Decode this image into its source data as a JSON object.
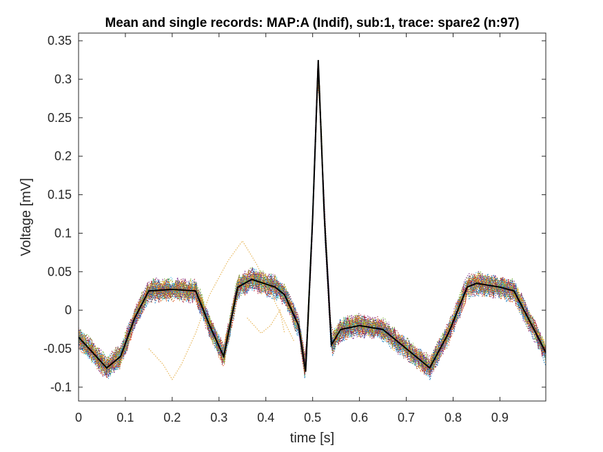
{
  "chart_data": {
    "type": "line",
    "title": "Mean and single records: MAP:A (Indif), sub:1, trace: spare2 (n:97)",
    "xlabel": "time [s]",
    "ylabel": "Voltage [mV]",
    "xlim": [
      0,
      0.998
    ],
    "ylim": [
      -0.118,
      0.36
    ],
    "x_ticks": [
      0,
      0.1,
      0.2,
      0.3,
      0.4,
      0.5,
      0.6,
      0.7,
      0.8,
      0.9
    ],
    "x_tick_labels": [
      "0",
      "0.1",
      "0.2",
      "0.3",
      "0.4",
      "0.5",
      "0.6",
      "0.7",
      "0.8",
      "0.9"
    ],
    "y_ticks": [
      -0.1,
      -0.05,
      0,
      0.05,
      0.1,
      0.15,
      0.2,
      0.25,
      0.3,
      0.35
    ],
    "y_tick_labels": [
      "-0.1",
      "-0.05",
      "0",
      "0.05",
      "0.1",
      "0.15",
      "0.2",
      "0.25",
      "0.3",
      "0.35"
    ],
    "grid": false,
    "single_record_count": 97,
    "single_record_style": "dotted multicolor",
    "mean_color": "#000000",
    "mean_series": {
      "x": [
        0,
        0.03,
        0.06,
        0.09,
        0.12,
        0.15,
        0.2,
        0.25,
        0.28,
        0.31,
        0.34,
        0.37,
        0.42,
        0.44,
        0.47,
        0.485,
        0.5,
        0.512,
        0.525,
        0.54,
        0.56,
        0.6,
        0.65,
        0.7,
        0.75,
        0.79,
        0.83,
        0.85,
        0.9,
        0.93,
        0.96,
        0.998
      ],
      "y": [
        -0.035,
        -0.055,
        -0.075,
        -0.06,
        -0.01,
        0.025,
        0.027,
        0.025,
        -0.02,
        -0.06,
        0.03,
        0.04,
        0.03,
        0.02,
        -0.02,
        -0.08,
        0.12,
        0.325,
        0.12,
        -0.045,
        -0.025,
        -0.02,
        -0.025,
        -0.05,
        -0.075,
        -0.03,
        0.03,
        0.035,
        0.03,
        0.025,
        -0.01,
        -0.055
      ]
    },
    "outlier_color": "#e6b455",
    "outlier_series": {
      "x": [
        0.15,
        0.18,
        0.2,
        0.22,
        0.25,
        0.28,
        0.32,
        0.35,
        0.38,
        0.42,
        0.46
      ],
      "y": [
        -0.05,
        -0.07,
        -0.09,
        -0.07,
        -0.03,
        0.02,
        0.065,
        0.09,
        0.06,
        0.01,
        -0.04
      ]
    },
    "outlier_series_2": {
      "x": [
        0.36,
        0.39,
        0.41,
        0.43,
        0.44
      ],
      "y": [
        -0.01,
        -0.03,
        -0.02,
        0.0,
        -0.03
      ]
    },
    "palette": [
      "#0072BD",
      "#D95319",
      "#EDB120",
      "#7E2F8E",
      "#77AC30",
      "#4DBEEE",
      "#A2142F"
    ]
  }
}
